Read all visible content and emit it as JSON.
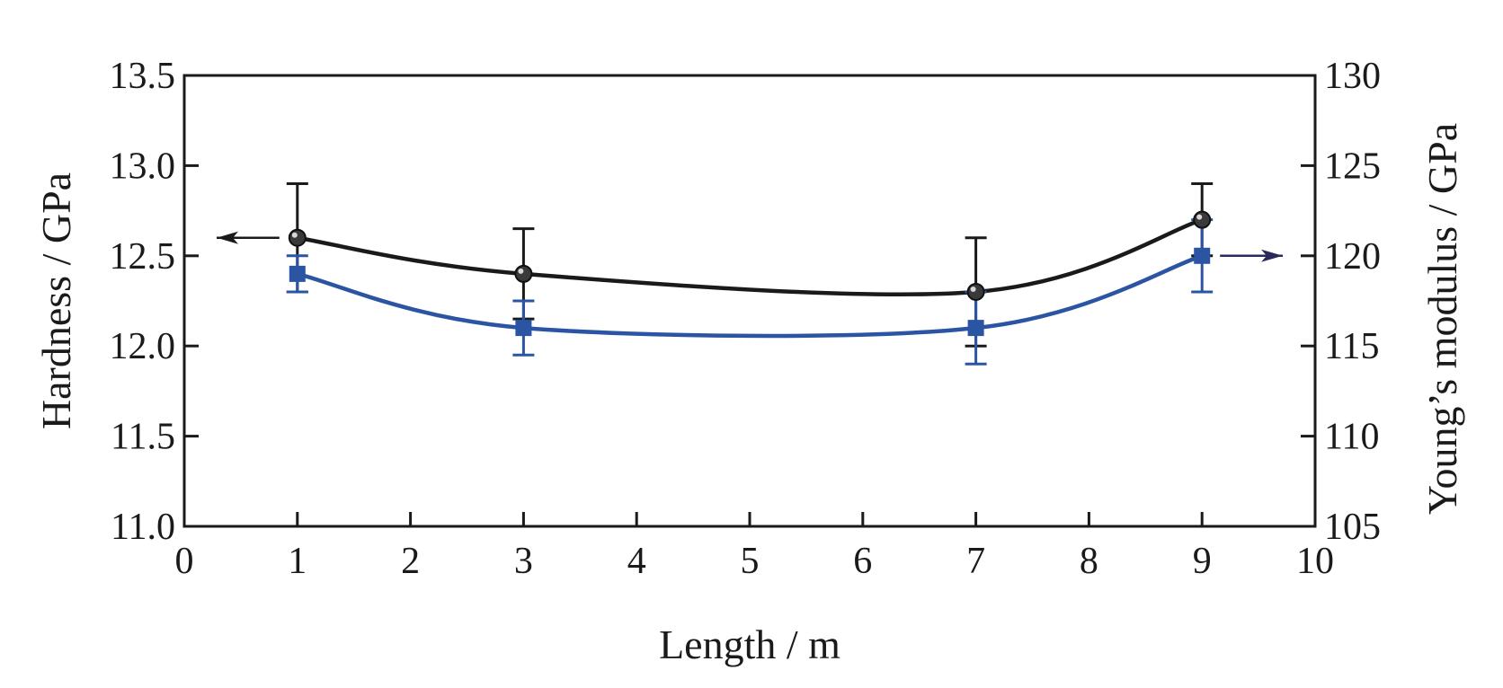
{
  "chart_data": {
    "type": "line",
    "xlabel": "Length / m",
    "ylabel_left": "Hardness / GPa",
    "ylabel_right": "Young’s modulus / GPa",
    "xlim": [
      0,
      10
    ],
    "ylim_left": [
      11.0,
      13.5
    ],
    "ylim_right": [
      105,
      130
    ],
    "x_ticks": [
      "0",
      "1",
      "2",
      "3",
      "4",
      "5",
      "6",
      "7",
      "8",
      "9",
      "10"
    ],
    "y_left_ticks": [
      "11.0",
      "11.5",
      "12.0",
      "12.5",
      "13.0",
      "13.5"
    ],
    "y_right_ticks": [
      "105",
      "110",
      "115",
      "120",
      "125",
      "130"
    ],
    "grid": false,
    "series": [
      {
        "axis": "left",
        "color": "#1a1a1a",
        "marker": "circle",
        "x": [
          1,
          3,
          7,
          9
        ],
        "values": [
          12.6,
          12.4,
          12.3,
          12.7
        ],
        "error": [
          0.3,
          0.25,
          0.3,
          0.2
        ],
        "arrow": "left"
      },
      {
        "axis": "right",
        "color": "#2b54a3",
        "marker": "square",
        "x": [
          1,
          3,
          7,
          9
        ],
        "values": [
          119,
          116,
          116,
          120
        ],
        "error": [
          1,
          1.5,
          2,
          2
        ],
        "arrow": "right"
      }
    ]
  }
}
